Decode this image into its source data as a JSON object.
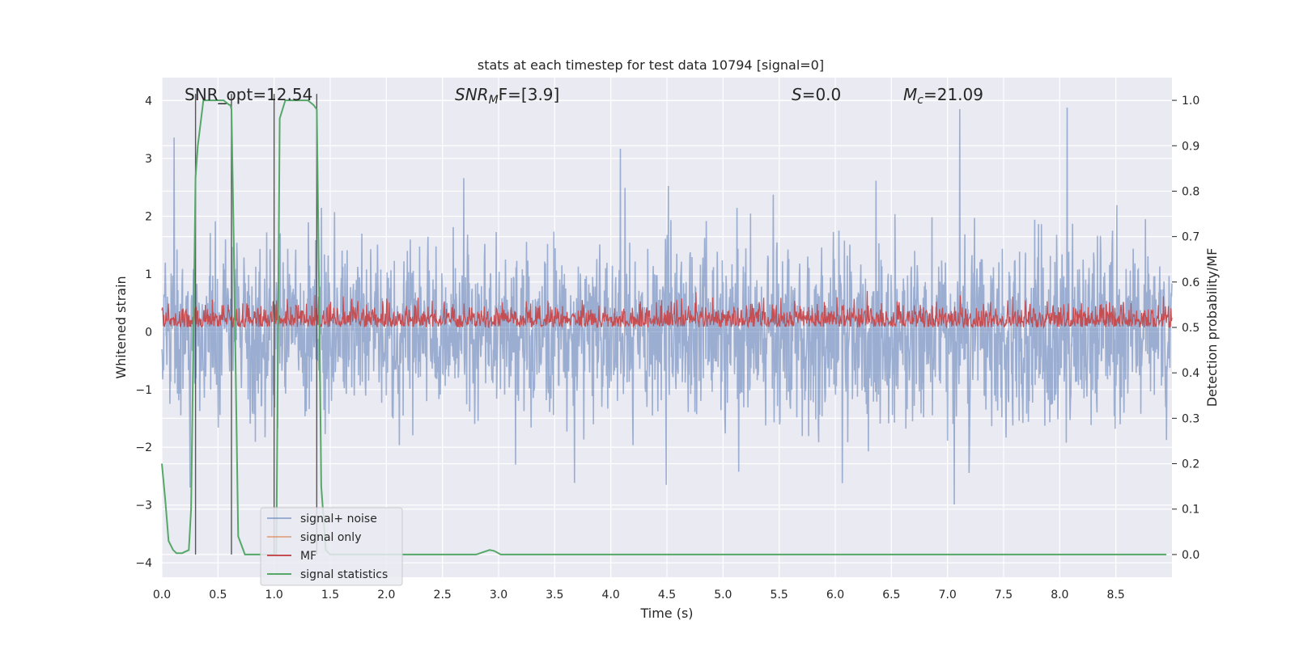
{
  "chart_data": {
    "type": "line",
    "title": "stats at each timestep for test data 10794 [signal=0]",
    "xlabel": "Time (s)",
    "ylabel": "Whitened strain",
    "y2label": "Detection probability/MF",
    "xlim": [
      0.0,
      9.0
    ],
    "ylim": [
      -4.25,
      4.4
    ],
    "y2lim": [
      -0.05,
      1.05
    ],
    "x_ticks": [
      0.0,
      0.5,
      1.0,
      1.5,
      2.0,
      2.5,
      3.0,
      3.5,
      4.0,
      4.5,
      5.0,
      5.5,
      6.0,
      6.5,
      7.0,
      7.5,
      8.0,
      8.5
    ],
    "x_tick_labels": [
      "0.0",
      "0.5",
      "1.0",
      "1.5",
      "2.0",
      "2.5",
      "3.0",
      "3.5",
      "4.0",
      "4.5",
      "5.0",
      "5.5",
      "6.0",
      "6.5",
      "7.0",
      "7.5",
      "8.0",
      "8.5"
    ],
    "y_ticks": [
      4,
      3,
      2,
      1,
      0,
      -1,
      -2,
      -3,
      -4
    ],
    "y_tick_labels": [
      "4",
      "3",
      "2",
      "1",
      "0",
      "−1",
      "−2",
      "−3",
      "−4"
    ],
    "y2_ticks": [
      1.0,
      0.9,
      0.8,
      0.7,
      0.6,
      0.5,
      0.4,
      0.3,
      0.2,
      0.1,
      0.0
    ],
    "y2_tick_labels": [
      "1.0",
      "0.9",
      "0.8",
      "0.7",
      "0.6",
      "0.5",
      "0.4",
      "0.3",
      "0.2",
      "0.1",
      "0.0"
    ],
    "grid": true,
    "legend_position": "lower-left",
    "annotations": {
      "snr_opt": "SNR_opt=12.54",
      "snr_mf_base": "SNR",
      "snr_mf_sub": "M",
      "snr_mf_rest": "F=[3.9]",
      "s_italic": "S",
      "s_rest": "=0.0",
      "mc_base": "M",
      "mc_sub": "c",
      "mc_rest": "=21.09"
    },
    "vertical_lines_x": [
      0.3,
      0.62,
      1.0,
      1.38
    ],
    "series": [
      {
        "name": "signal+ noise",
        "color": "#4c72b0",
        "style": "dense noise",
        "approx_range": [
          -3.9,
          4.0
        ]
      },
      {
        "name": "signal only",
        "color": "#dd8452",
        "values": []
      },
      {
        "name": "MF",
        "color": "#c44e52",
        "axis": "right",
        "style": "dense noise",
        "approx_range": [
          0.5,
          0.62
        ]
      },
      {
        "name": "signal statistics",
        "color": "#55a868",
        "axis": "right",
        "x": [
          0.0,
          0.03,
          0.06,
          0.1,
          0.13,
          0.18,
          0.24,
          0.26,
          0.28,
          0.3,
          0.32,
          0.37,
          0.4,
          0.45,
          0.5,
          0.55,
          0.6,
          0.61,
          0.62,
          0.64,
          0.68,
          0.74,
          0.8,
          0.9,
          1.0,
          1.02,
          1.05,
          1.1,
          1.2,
          1.3,
          1.35,
          1.38,
          1.4,
          1.42,
          1.46,
          1.5,
          1.6,
          2.0,
          2.5,
          2.7,
          2.8,
          2.86,
          2.92,
          2.96,
          3.02,
          3.1,
          3.5,
          4.0,
          4.5,
          5.0,
          5.5,
          6.0,
          6.5,
          7.0,
          7.5,
          8.0,
          8.5,
          8.95
        ],
        "values": [
          0.2,
          0.12,
          0.03,
          0.01,
          0.003,
          0.003,
          0.01,
          0.1,
          0.45,
          0.83,
          0.9,
          1.0,
          1.0,
          1.0,
          1.0,
          1.0,
          0.99,
          0.99,
          0.98,
          0.7,
          0.04,
          0.0,
          0.0,
          0.0,
          0.0,
          0.0,
          0.96,
          1.0,
          1.0,
          1.0,
          0.99,
          0.98,
          0.6,
          0.15,
          0.01,
          0.0,
          0.0,
          0.0,
          0.0,
          0.0,
          0.0,
          0.005,
          0.01,
          0.008,
          0.0,
          0.0,
          0.0,
          0.0,
          0.0,
          0.0,
          0.0,
          0.0,
          0.0,
          0.0,
          0.0,
          0.0,
          0.0,
          0.0
        ]
      }
    ]
  }
}
